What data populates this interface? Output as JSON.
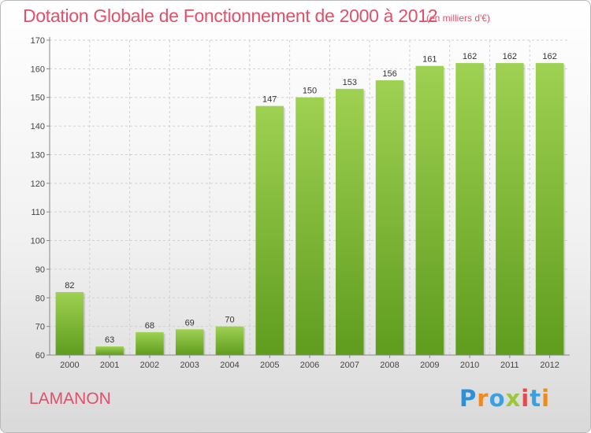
{
  "header": {
    "title": "Dotation Globale de Fonctionnement de 2000 à 2012",
    "subtitle": "(en milliers d'€)"
  },
  "footer": {
    "commune": "LAMANON",
    "logo_text": "Proxiti"
  },
  "colors": {
    "title": "#e0506a",
    "bar_light": "#9fd152",
    "bar_dark": "#5f9c1e",
    "grid": "#d0d0d0"
  },
  "chart_data": {
    "type": "bar",
    "title": "Dotation Globale de Fonctionnement de 2000 à 2012",
    "subtitle": "(en milliers d'€)",
    "xlabel": "",
    "ylabel": "",
    "categories": [
      "2000",
      "2001",
      "2002",
      "2003",
      "2004",
      "2005",
      "2006",
      "2007",
      "2008",
      "2009",
      "2010",
      "2011",
      "2012"
    ],
    "values": [
      82,
      63,
      68,
      69,
      70,
      147,
      150,
      153,
      156,
      161,
      162,
      162,
      162
    ],
    "ylim": [
      60,
      170
    ],
    "yticks": [
      60,
      70,
      80,
      90,
      100,
      110,
      120,
      130,
      140,
      150,
      160,
      170
    ],
    "grid": true,
    "legend": "none"
  }
}
